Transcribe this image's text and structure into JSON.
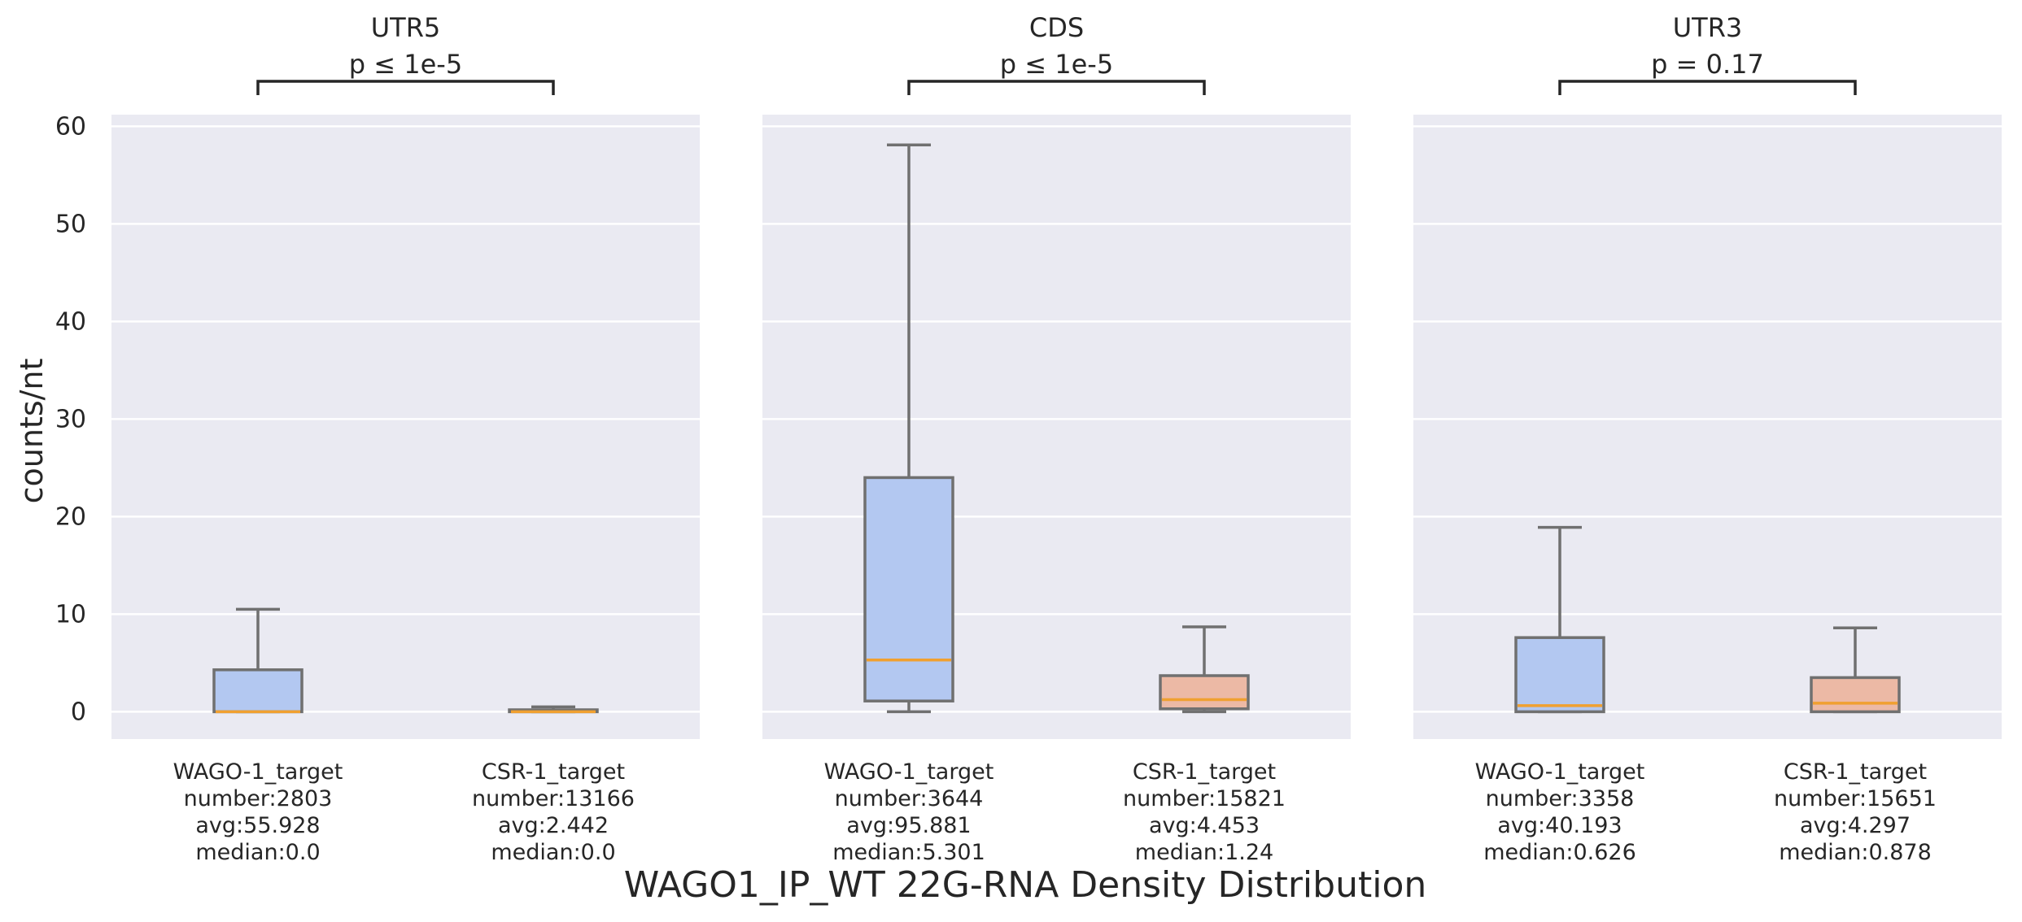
{
  "chart_data": {
    "type": "box",
    "title": "WAGO1_IP_WT 22G-RNA Density Distribution",
    "ylabel": "counts/nt",
    "ylim": [
      -2.8,
      61.2
    ],
    "yticks": [
      "0",
      "10",
      "20",
      "30",
      "40",
      "50",
      "60"
    ],
    "grid": true,
    "colors": {
      "WAGO-1_target": "#b3c8f1",
      "CSR-1_target": "#ecb9a5",
      "median": "#f0a030",
      "box_edge": "#707070",
      "panel_bg": "#eaeaf2"
    },
    "panels": [
      {
        "title": "UTR5",
        "pvalue": "p ≤ 1e-5",
        "groups": [
          {
            "name": "WAGO-1_target",
            "lines": [
              "WAGO-1_target",
              "number:2803",
              "avg:55.928",
              "median:0.0"
            ],
            "whislo": 0.0,
            "q1": 0.0,
            "med": 0.0,
            "q3": 4.3,
            "whishi": 10.5
          },
          {
            "name": "CSR-1_target",
            "lines": [
              "CSR-1_target",
              "number:13166",
              "avg:2.442",
              "median:0.0"
            ],
            "whislo": 0.0,
            "q1": 0.0,
            "med": 0.0,
            "q3": 0.2,
            "whishi": 0.5
          }
        ]
      },
      {
        "title": "CDS",
        "pvalue": "p ≤ 1e-5",
        "groups": [
          {
            "name": "WAGO-1_target",
            "lines": [
              "WAGO-1_target",
              "number:3644",
              "avg:95.881",
              "median:5.301"
            ],
            "whislo": 0.0,
            "q1": 1.1,
            "med": 5.3,
            "q3": 24.0,
            "whishi": 58.1
          },
          {
            "name": "CSR-1_target",
            "lines": [
              "CSR-1_target",
              "number:15821",
              "avg:4.453",
              "median:1.24"
            ],
            "whislo": 0.0,
            "q1": 0.3,
            "med": 1.24,
            "q3": 3.7,
            "whishi": 8.7
          }
        ]
      },
      {
        "title": "UTR3",
        "pvalue": "p = 0.17",
        "groups": [
          {
            "name": "WAGO-1_target",
            "lines": [
              "WAGO-1_target",
              "number:3358",
              "avg:40.193",
              "median:0.626"
            ],
            "whislo": 0.0,
            "q1": 0.0,
            "med": 0.626,
            "q3": 7.6,
            "whishi": 18.9
          },
          {
            "name": "CSR-1_target",
            "lines": [
              "CSR-1_target",
              "number:15651",
              "avg:4.297",
              "median:0.878"
            ],
            "whislo": 0.0,
            "q1": 0.0,
            "med": 0.878,
            "q3": 3.5,
            "whishi": 8.6
          }
        ]
      }
    ]
  }
}
